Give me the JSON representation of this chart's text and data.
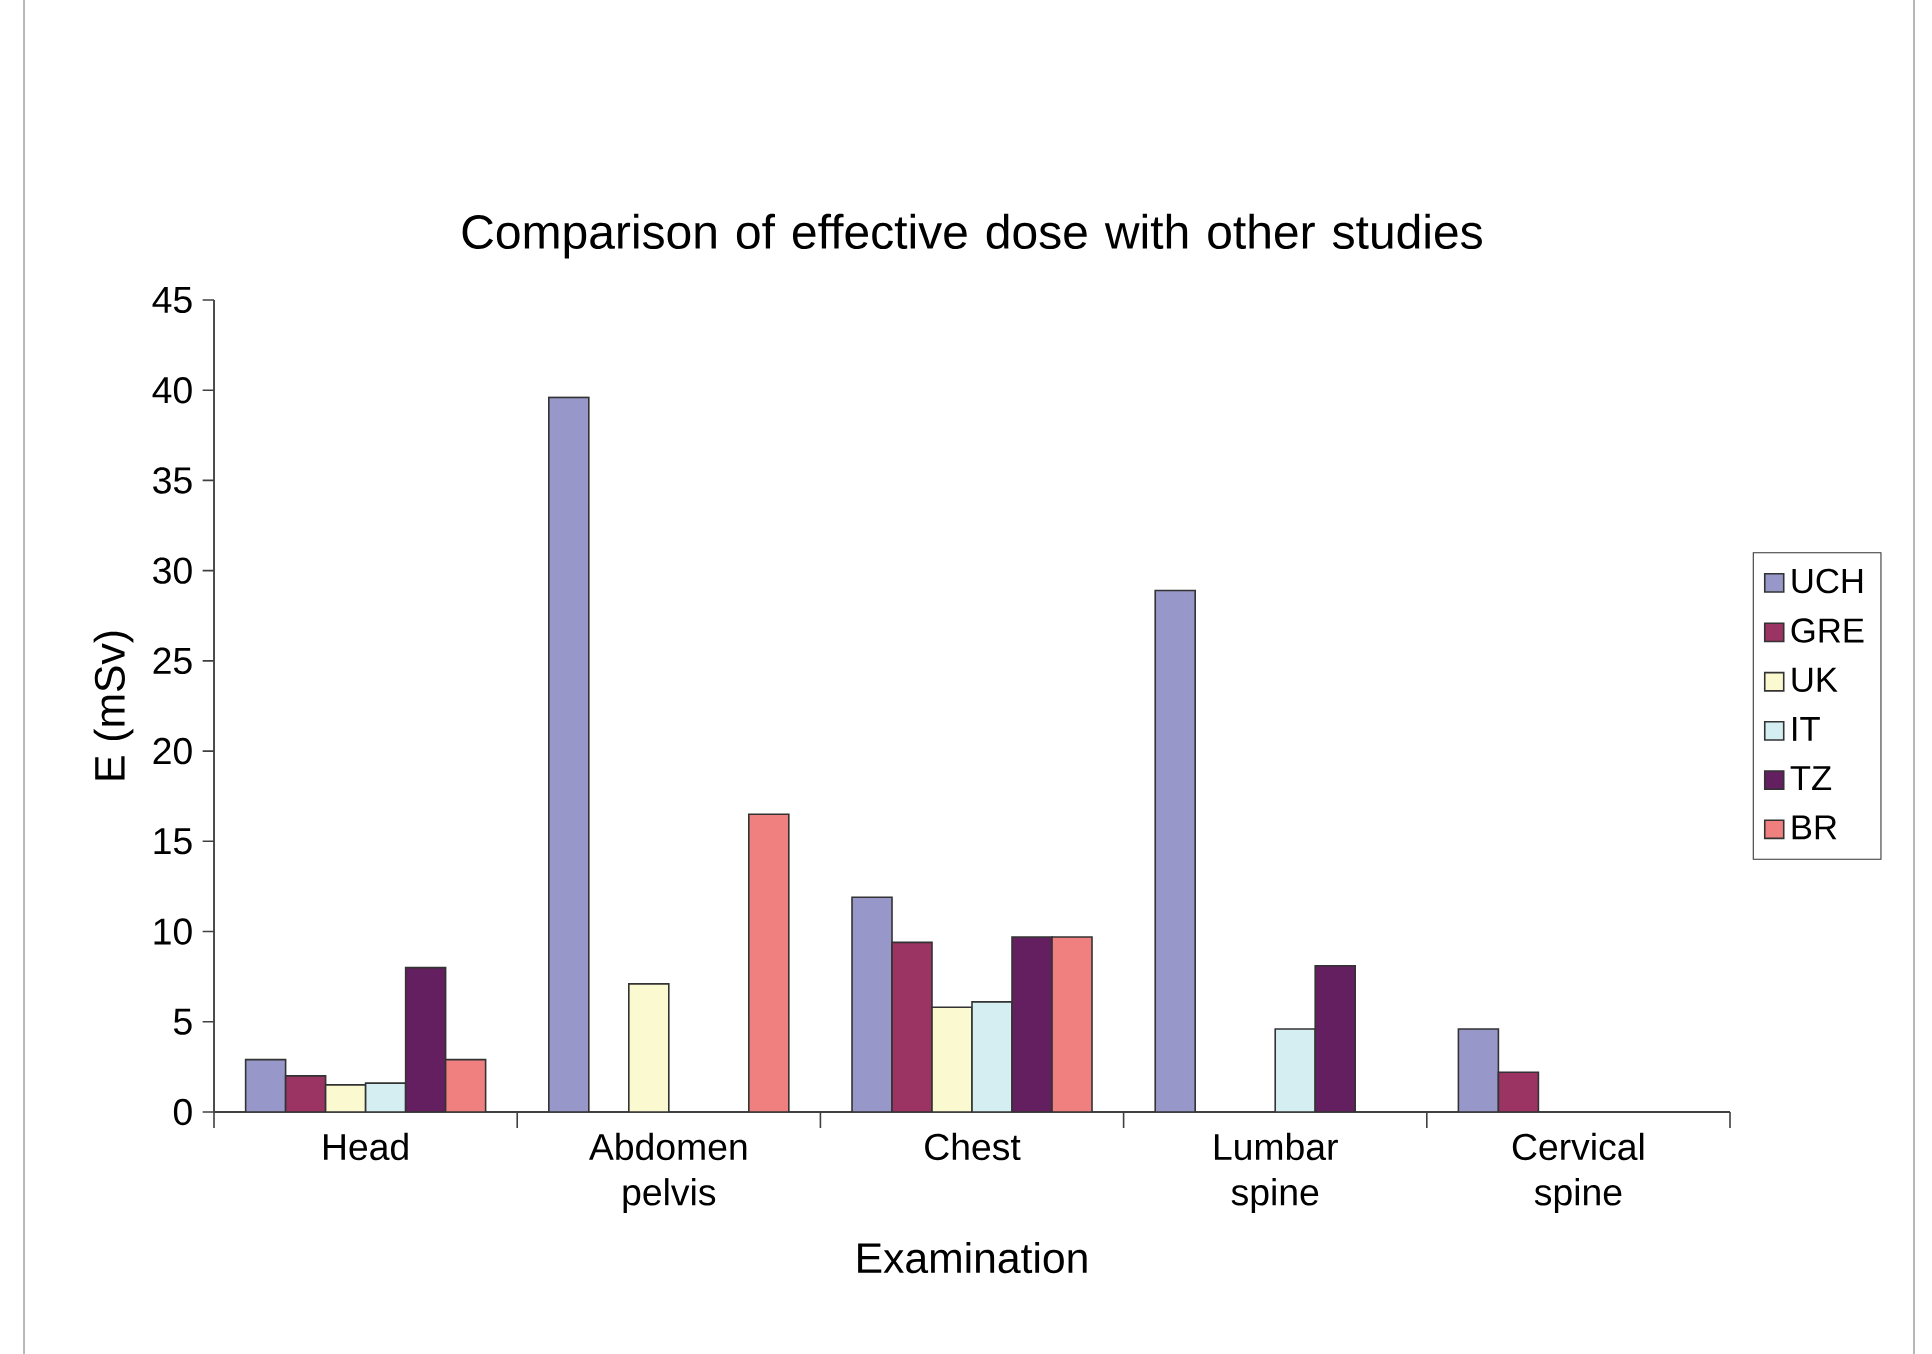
{
  "chart_data": {
    "type": "bar",
    "title": "Comparison of effective dose with other studies",
    "xlabel": "Examination",
    "ylabel": "E (mSv)",
    "categories": [
      "Head",
      "Abdomen pelvis",
      "Chest",
      "Lumbar spine",
      "Cervical spine"
    ],
    "series": [
      {
        "name": "UCH",
        "color": "#9797c9",
        "values": [
          2.9,
          39.6,
          11.9,
          28.9,
          4.6
        ]
      },
      {
        "name": "GRE",
        "color": "#9b3363",
        "values": [
          2.0,
          null,
          9.4,
          null,
          2.2
        ]
      },
      {
        "name": "UK",
        "color": "#fbf9d0",
        "values": [
          1.5,
          7.1,
          5.8,
          null,
          null
        ]
      },
      {
        "name": "IT",
        "color": "#d4eef2",
        "values": [
          1.6,
          null,
          6.1,
          4.6,
          null
        ]
      },
      {
        "name": "TZ",
        "color": "#631f5f",
        "values": [
          8.0,
          null,
          9.7,
          8.1,
          null
        ]
      },
      {
        "name": "BR",
        "color": "#f08080",
        "values": [
          2.9,
          16.5,
          9.7,
          null,
          null
        ]
      }
    ],
    "ylim": [
      0,
      45
    ],
    "yticks": [
      0,
      5,
      10,
      15,
      20,
      25,
      30,
      35,
      40,
      45
    ],
    "grid": false,
    "legend": "right"
  }
}
